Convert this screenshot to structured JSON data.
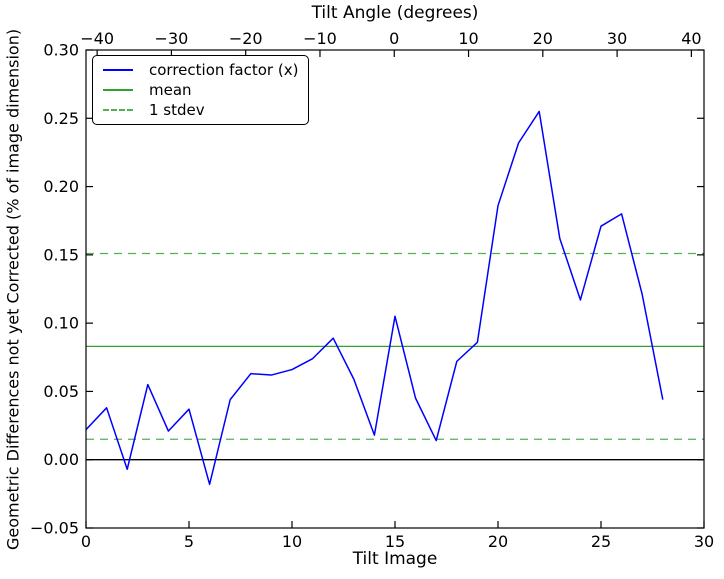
{
  "figure": {
    "background": "#ffffff",
    "top_axis_label": "Tilt Angle (degrees)",
    "bottom_axis_label": "Tilt Image",
    "y_axis_label": "Geometric Differences not yet Corrected (% of image dimension)"
  },
  "legend": {
    "position": "upper left",
    "items": [
      {
        "label": "correction factor (x)",
        "color": "#0000ff",
        "style": "solid"
      },
      {
        "label": "mean",
        "color": "#33a033",
        "style": "solid"
      },
      {
        "label": "1 stdev",
        "color": "#52b152",
        "style": "dashed"
      }
    ]
  },
  "chart_data": {
    "type": "line",
    "title": "Tilt Angle (degrees)",
    "xlabel": "Tilt Image",
    "ylabel": "Geometric Differences not yet Corrected (% of image dimension)",
    "grid": false,
    "legend_position": "upper left",
    "xlim": [
      0,
      30
    ],
    "ylim": [
      -0.05,
      0.3
    ],
    "x_ticks": [
      0,
      5,
      10,
      15,
      20,
      25,
      30
    ],
    "x_tick_labels": [
      "0",
      "5",
      "10",
      "15",
      "20",
      "25",
      "30"
    ],
    "y_ticks": [
      -0.05,
      0.0,
      0.05,
      0.1,
      0.15,
      0.2,
      0.25,
      0.3
    ],
    "y_tick_labels": [
      "−0.05",
      "0.00",
      "0.05",
      "0.10",
      "0.15",
      "0.20",
      "0.25",
      "0.30"
    ],
    "top_axis": {
      "label": "Tilt Angle (degrees)",
      "ticks": [
        -40,
        -30,
        -20,
        -10,
        0,
        10,
        20,
        30,
        40
      ],
      "tick_labels": [
        "−40",
        "−30",
        "−20",
        "−10",
        "0",
        "10",
        "20",
        "30",
        "40"
      ],
      "range": [
        -41.5,
        41.7
      ]
    },
    "x": [
      0,
      1,
      2,
      3,
      4,
      5,
      6,
      7,
      8,
      9,
      10,
      11,
      12,
      13,
      14,
      15,
      16,
      17,
      18,
      19,
      20,
      21,
      22,
      23,
      24,
      25,
      26,
      27,
      28
    ],
    "series": [
      {
        "name": "correction factor (x)",
        "color": "#0000ff",
        "values": [
          0.022,
          0.038,
          -0.007,
          0.055,
          0.021,
          0.037,
          -0.018,
          0.044,
          0.063,
          0.062,
          0.066,
          0.074,
          0.089,
          0.059,
          0.018,
          0.105,
          0.045,
          0.014,
          0.072,
          0.086,
          0.186,
          0.232,
          0.255,
          0.162,
          0.117,
          0.171,
          0.18,
          0.121,
          0.044
        ]
      }
    ],
    "mean": 0.083,
    "stdev": 0.068,
    "stdev_upper": 0.151,
    "stdev_lower": 0.015,
    "zero_line": 0.0,
    "colors": {
      "series": "#0000ff",
      "mean": "#33a033",
      "stdev": "#52b152",
      "zero": "#000000",
      "frame": "#000000"
    }
  }
}
